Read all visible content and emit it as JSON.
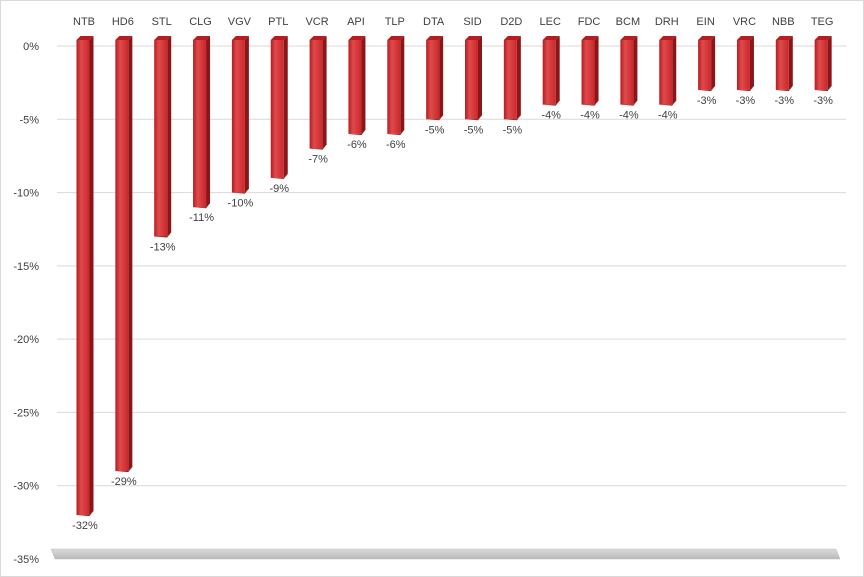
{
  "chart_data": {
    "type": "bar",
    "orientation": "vertical",
    "categories": [
      "NTB",
      "HD6",
      "STL",
      "CLG",
      "VGV",
      "PTL",
      "VCR",
      "API",
      "TLP",
      "DTA",
      "SID",
      "D2D",
      "LEC",
      "FDC",
      "BCM",
      "DRH",
      "EIN",
      "VRC",
      "NBB",
      "TEG"
    ],
    "values": [
      -32,
      -29,
      -13,
      -11,
      -10,
      -9,
      -7,
      -6,
      -6,
      -5,
      -5,
      -5,
      -4,
      -4,
      -4,
      -4,
      -3,
      -3,
      -3,
      -3
    ],
    "data_labels": [
      "-32%",
      "-29%",
      "-13%",
      "-11%",
      "-10%",
      "-9%",
      "-7%",
      "-6%",
      "-6%",
      "-5%",
      "-5%",
      "-5%",
      "-4%",
      "-4%",
      "-4%",
      "-4%",
      "-3%",
      "-3%",
      "-3%",
      "-3%"
    ],
    "y_ticks": [
      "0%",
      "-5%",
      "-10%",
      "-15%",
      "-20%",
      "-25%",
      "-30%",
      "-35%"
    ],
    "y_tick_values": [
      0,
      -5,
      -10,
      -15,
      -20,
      -25,
      -30,
      -35
    ],
    "ylim": [
      -35,
      0
    ],
    "category_axis_position": "top",
    "grid": true,
    "legend": "none",
    "title": "",
    "xlabel": "",
    "ylabel": "",
    "colors": {
      "bar_front": "#c8282b",
      "bar_highlight": "#e04a4c",
      "bar_side": "#8c1518",
      "bar_top": "#b51d20",
      "gridline": "#d9d9d9",
      "floor": "#c9c9c9",
      "text": "#404040"
    }
  }
}
